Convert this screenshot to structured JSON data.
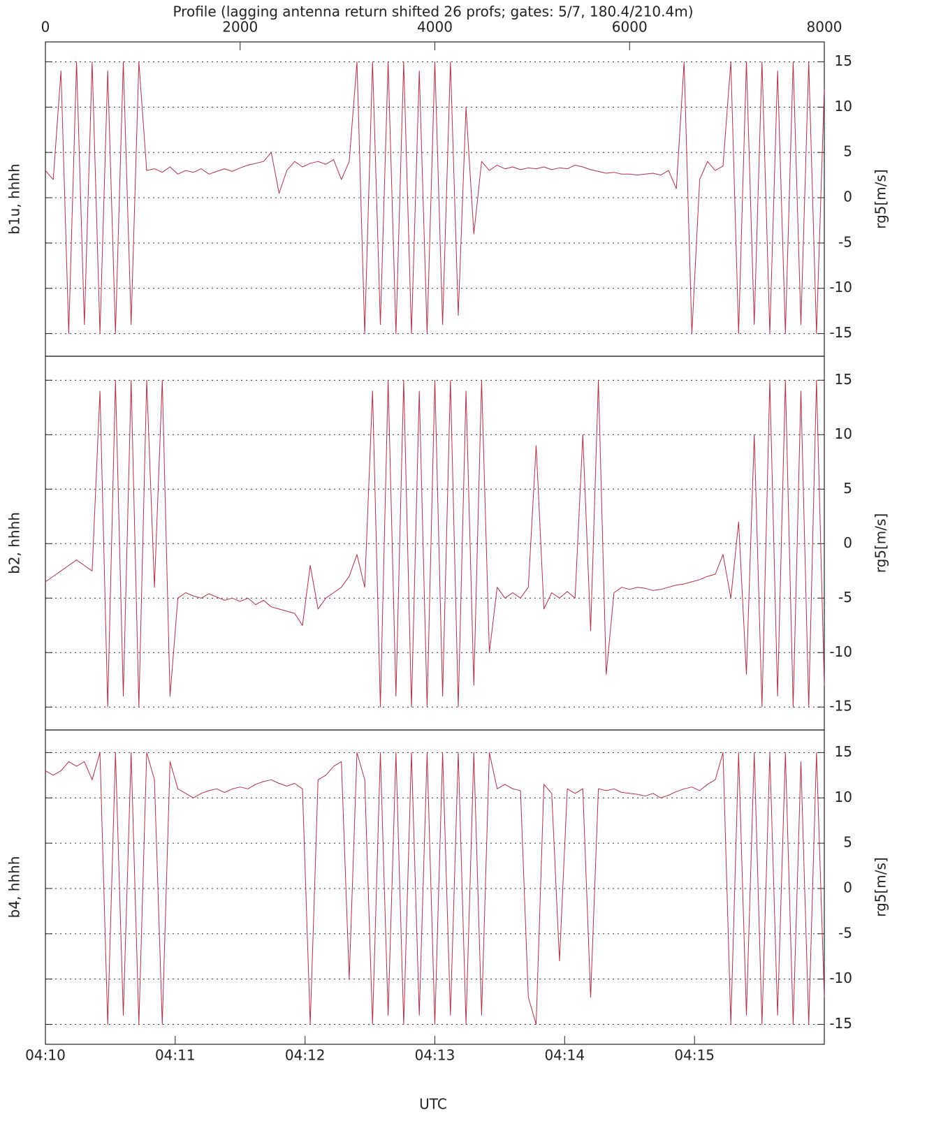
{
  "chart_data": [
    {
      "type": "line",
      "title": "Profile (lagging antenna return shifted 26 profs; gates: 5/7, 180.4/210.4m)",
      "ylabel": "b1u, hhhh",
      "y2label": "rg5[m/s]",
      "color": "#b0304a",
      "grid": true,
      "xlim": [
        0,
        8000
      ],
      "xticks": [
        0,
        2000,
        4000,
        6000,
        8000
      ],
      "ylim": [
        -17.5,
        17.2
      ],
      "yticks": [
        -15,
        -10,
        -5,
        0,
        5,
        10,
        15
      ],
      "x": [
        0,
        80,
        160,
        240,
        320,
        400,
        480,
        560,
        640,
        720,
        800,
        880,
        960,
        1040,
        1120,
        1200,
        1280,
        1360,
        1440,
        1520,
        1600,
        1680,
        1760,
        1840,
        1920,
        2000,
        2080,
        2160,
        2240,
        2320,
        2400,
        2480,
        2560,
        2640,
        2720,
        2800,
        2880,
        2960,
        3040,
        3120,
        3200,
        3280,
        3360,
        3440,
        3520,
        3600,
        3680,
        3760,
        3840,
        3920,
        4000,
        4080,
        4160,
        4240,
        4320,
        4400,
        4480,
        4560,
        4640,
        4720,
        4800,
        4880,
        4960,
        5040,
        5120,
        5200,
        5280,
        5360,
        5440,
        5520,
        5600,
        5680,
        5760,
        5840,
        5920,
        6000,
        6080,
        6160,
        6240,
        6320,
        6400,
        6480,
        6560,
        6640,
        6720,
        6800,
        6880,
        6960,
        7040,
        7120,
        7200,
        7280,
        7360,
        7440,
        7520,
        7600,
        7680,
        7760,
        7840,
        7920,
        8000
      ],
      "values": [
        3,
        2,
        14,
        -15,
        15,
        -14,
        15,
        -15,
        14,
        -15,
        15,
        -14,
        15,
        3,
        3.2,
        2.8,
        3.4,
        2.6,
        3,
        2.8,
        3.2,
        2.6,
        2.9,
        3.2,
        2.9,
        3.3,
        3.6,
        3.8,
        4,
        5,
        0.5,
        3,
        4,
        3.4,
        3.8,
        4,
        3.7,
        4.2,
        2,
        4,
        15,
        -15,
        15,
        -14,
        15,
        -15,
        15,
        -15,
        14,
        -15,
        15,
        -14,
        15,
        -13,
        10,
        -4,
        4,
        3,
        3.6,
        3.2,
        3.4,
        3.1,
        3.3,
        3.2,
        3.4,
        3.1,
        3.3,
        3.2,
        3.6,
        3.4,
        3.1,
        2.9,
        2.7,
        2.8,
        2.6,
        2.6,
        2.5,
        2.6,
        2.7,
        2.5,
        3,
        1,
        15,
        -15,
        2,
        4,
        3,
        3.5,
        15,
        -15,
        15,
        -14,
        15,
        -15,
        14,
        -15,
        15,
        -14,
        15,
        -15,
        12
      ]
    },
    {
      "type": "line",
      "ylabel": "b2, hhhh",
      "y2label": "rg5[m/s]",
      "color": "#b0304a",
      "grid": true,
      "xlim": [
        0,
        8000
      ],
      "ylim": [
        -17.1,
        17.2
      ],
      "yticks": [
        -15,
        -10,
        -5,
        0,
        5,
        10,
        15
      ],
      "x": [
        0,
        80,
        160,
        240,
        320,
        400,
        480,
        560,
        640,
        720,
        800,
        880,
        960,
        1040,
        1120,
        1200,
        1280,
        1360,
        1440,
        1520,
        1600,
        1680,
        1760,
        1840,
        1920,
        2000,
        2080,
        2160,
        2240,
        2320,
        2400,
        2480,
        2560,
        2640,
        2720,
        2800,
        2880,
        2960,
        3040,
        3120,
        3200,
        3280,
        3360,
        3440,
        3520,
        3600,
        3680,
        3760,
        3840,
        3920,
        4000,
        4080,
        4160,
        4240,
        4320,
        4400,
        4480,
        4560,
        4640,
        4720,
        4800,
        4880,
        4960,
        5040,
        5120,
        5200,
        5280,
        5360,
        5440,
        5520,
        5600,
        5680,
        5760,
        5840,
        5920,
        6000,
        6080,
        6160,
        6240,
        6320,
        6400,
        6480,
        6560,
        6640,
        6720,
        6800,
        6880,
        6960,
        7040,
        7120,
        7200,
        7280,
        7360,
        7440,
        7520,
        7600,
        7680,
        7760,
        7840,
        7920,
        8000
      ],
      "values": [
        -3.5,
        -3,
        -2.5,
        -2,
        -1.5,
        -2,
        -2.5,
        14,
        -15,
        15,
        -14,
        15,
        -15,
        15,
        -4,
        15,
        -14,
        -5,
        -4.5,
        -4.8,
        -5,
        -4.6,
        -4.9,
        -5.2,
        -5,
        -5.3,
        -5,
        -5.6,
        -5.2,
        -5.8,
        -6,
        -6.2,
        -6.4,
        -7.5,
        -2,
        -6,
        -5,
        -4.5,
        -4,
        -3,
        -1,
        -4,
        14,
        -15,
        15,
        -14,
        15,
        -15,
        14,
        -15,
        15,
        -14,
        15,
        -15,
        14,
        -13,
        15,
        -10,
        -4,
        -5,
        -4.5,
        -5,
        -4,
        9,
        -6,
        -4.5,
        -5,
        -4.4,
        -5,
        10,
        -8,
        15,
        -12,
        -4.5,
        -4,
        -4.2,
        -4,
        -4.1,
        -4.3,
        -4.2,
        -4,
        -3.8,
        -3.7,
        -3.5,
        -3.3,
        -3,
        -2.8,
        -1,
        -5,
        2,
        -12,
        10,
        -15,
        15,
        -14,
        15,
        -15,
        14,
        -15,
        15,
        -13
      ]
    },
    {
      "type": "line",
      "ylabel": "b4, hhhh",
      "y2label": "rg5[m/s]",
      "xlabel": "UTC",
      "color": "#b0304a",
      "grid": true,
      "xlim": [
        0,
        8000
      ],
      "xticks": [
        {
          "value": 0,
          "label": "04:10"
        },
        {
          "value": 1333,
          "label": "04:11"
        },
        {
          "value": 2667,
          "label": "04:12"
        },
        {
          "value": 4000,
          "label": "04:13"
        },
        {
          "value": 5333,
          "label": "04:14"
        },
        {
          "value": 6667,
          "label": "04:15"
        }
      ],
      "ylim": [
        -17.2,
        17.5
      ],
      "yticks": [
        -15,
        -10,
        -5,
        0,
        5,
        10,
        15
      ],
      "x": [
        0,
        80,
        160,
        240,
        320,
        400,
        480,
        560,
        640,
        720,
        800,
        880,
        960,
        1040,
        1120,
        1200,
        1280,
        1360,
        1440,
        1520,
        1600,
        1680,
        1760,
        1840,
        1920,
        2000,
        2080,
        2160,
        2240,
        2320,
        2400,
        2480,
        2560,
        2640,
        2720,
        2800,
        2880,
        2960,
        3040,
        3120,
        3200,
        3280,
        3360,
        3440,
        3520,
        3600,
        3680,
        3760,
        3840,
        3920,
        4000,
        4080,
        4160,
        4240,
        4320,
        4400,
        4480,
        4560,
        4640,
        4720,
        4800,
        4880,
        4960,
        5040,
        5120,
        5200,
        5280,
        5360,
        5440,
        5520,
        5600,
        5680,
        5760,
        5840,
        5920,
        6000,
        6080,
        6160,
        6240,
        6320,
        6400,
        6480,
        6560,
        6640,
        6720,
        6800,
        6880,
        6960,
        7040,
        7120,
        7200,
        7280,
        7360,
        7440,
        7520,
        7600,
        7680,
        7760,
        7840,
        7920,
        8000
      ],
      "values": [
        13,
        12.5,
        13,
        14,
        13.5,
        14,
        12,
        15,
        -15,
        15,
        -14,
        15,
        -15,
        15,
        12,
        -15,
        14,
        11,
        10.5,
        10,
        10.5,
        10.8,
        11,
        10.6,
        11,
        11.2,
        11,
        11.5,
        11.8,
        12,
        11.6,
        11.3,
        11.6,
        11,
        -15,
        12,
        12.5,
        13.5,
        14,
        -10,
        15,
        12,
        -15,
        15,
        -14,
        15,
        -15,
        15,
        -14,
        15,
        -15,
        15,
        -14,
        15,
        -15,
        15,
        -14,
        15,
        11,
        11.5,
        11,
        10.8,
        -12,
        -15,
        11.5,
        10.5,
        -8,
        11,
        10.5,
        11,
        -12,
        11,
        10.8,
        11,
        10.6,
        10.5,
        10.4,
        10.2,
        10.5,
        10,
        10.3,
        10.7,
        11,
        11.2,
        10.8,
        11.5,
        12,
        15,
        -15,
        15,
        -14,
        15,
        -15,
        15,
        -14,
        15,
        -15,
        14,
        -15,
        15,
        -12
      ]
    }
  ]
}
